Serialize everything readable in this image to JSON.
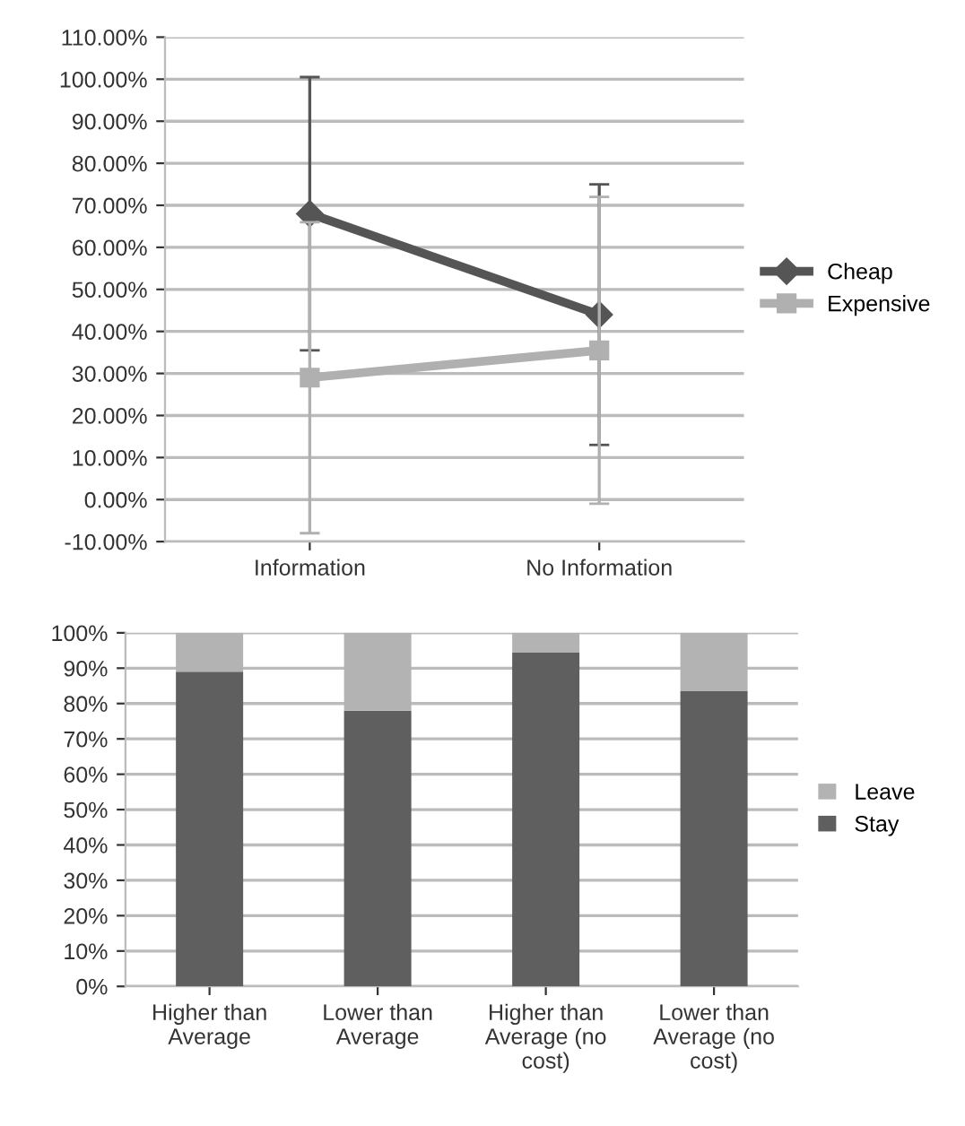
{
  "chart_data": [
    {
      "type": "line",
      "categories": [
        "Information",
        "No Information"
      ],
      "ylim": [
        -10,
        110
      ],
      "yticks": [
        {
          "value": -10,
          "label": "-10.00%"
        },
        {
          "value": 0,
          "label": "0.00%"
        },
        {
          "value": 10,
          "label": "10.00%"
        },
        {
          "value": 20,
          "label": "20.00%"
        },
        {
          "value": 30,
          "label": "30.00%"
        },
        {
          "value": 40,
          "label": "40.00%"
        },
        {
          "value": 50,
          "label": "50.00%"
        },
        {
          "value": 60,
          "label": "60.00%"
        },
        {
          "value": 70,
          "label": "70.00%"
        },
        {
          "value": 80,
          "label": "80.00%"
        },
        {
          "value": 90,
          "label": "90.00%"
        },
        {
          "value": 100,
          "label": "100.00%"
        },
        {
          "value": 110,
          "label": "110.00%"
        }
      ],
      "grid": "y",
      "legend": "right",
      "series": [
        {
          "name": "Cheap",
          "color": "#555555",
          "values": [
            68,
            44
          ],
          "errors": [
            32.5,
            31
          ],
          "marker": "diamond"
        },
        {
          "name": "Expensive",
          "color": "#b0b0b0",
          "values": [
            29,
            35.5
          ],
          "errors": [
            37,
            36.5
          ],
          "marker": "square"
        }
      ]
    },
    {
      "type": "bar",
      "stacked": true,
      "categories": [
        "Higher than Average",
        "Lower than Average",
        "Higher than Average (no cost)",
        "Lower than Average (no cost)"
      ],
      "ylim": [
        0,
        100
      ],
      "yticks": [
        {
          "value": 0,
          "label": "0%"
        },
        {
          "value": 10,
          "label": "10%"
        },
        {
          "value": 20,
          "label": "20%"
        },
        {
          "value": 30,
          "label": "30%"
        },
        {
          "value": 40,
          "label": "40%"
        },
        {
          "value": 50,
          "label": "50%"
        },
        {
          "value": 60,
          "label": "60%"
        },
        {
          "value": 70,
          "label": "70%"
        },
        {
          "value": 80,
          "label": "80%"
        },
        {
          "value": 90,
          "label": "90%"
        },
        {
          "value": 100,
          "label": "100%"
        }
      ],
      "grid": "y",
      "legend": "right",
      "series": [
        {
          "name": "Stay",
          "color": "#5f5f5f",
          "values": [
            89,
            78,
            94.5,
            83.5
          ]
        },
        {
          "name": "Leave",
          "color": "#b3b3b3",
          "values": [
            11,
            22,
            5.5,
            16.5
          ]
        }
      ]
    }
  ]
}
